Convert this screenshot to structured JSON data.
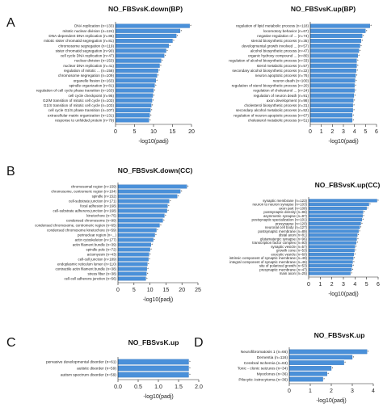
{
  "panels": [
    "A",
    "B",
    "C",
    "D"
  ],
  "colors": {
    "bar": "#4a90d9",
    "bar_stroke": "#2f6db0",
    "axis": "#222222"
  },
  "chart_data": [
    {
      "id": "A-left",
      "type": "bar",
      "orientation": "horizontal",
      "title": "NO_FBSvsK.down(BP)",
      "xlabel": "-log10(padj)",
      "xlim": [
        0,
        20
      ],
      "xticks": [
        0,
        5,
        10,
        15,
        20
      ],
      "categories": [
        "DNA replication (n=133)",
        "mitotic nuclear division (n=124)",
        "DNA-dependent DNA replication (n=85)",
        "mitotic sister chromatid segregation (n=81)",
        "chromosome segregation (n=119)",
        "sister chromatid segregation (n=90)",
        "cell cycle DNA replication (n=47)",
        "nuclear division (n=153)",
        "nuclear DNA replication (n=41)",
        "regulation of mitotic ... (n=158)",
        "chromosome segregation (n=109)",
        "organelle fission (n=163)",
        "spindle organization (n=81)",
        "regulation of cell cycle phase transition (n=163)",
        "cell cycle checkpoint (n=95)",
        "G2/M transition of mitotic cell cycle (n=103)",
        "G1/S transition of mitotic cell cycle (n=103)",
        "cell cycle G1/S phase transition (n=107)",
        "extracellular matrix organization (n=131)",
        "response to unfolded protein (n=79)"
      ],
      "values": [
        19.5,
        17.0,
        16.0,
        15.0,
        14.0,
        13.3,
        12.8,
        12.0,
        11.6,
        11.2,
        10.9,
        10.6,
        10.3,
        10.0,
        9.8,
        9.6,
        9.4,
        9.2,
        9.0,
        8.8
      ]
    },
    {
      "id": "A-right",
      "type": "bar",
      "orientation": "horizontal",
      "title": "NO_FBSvsK.up(BP)",
      "xlabel": "-log10(padj)",
      "xlim": [
        0,
        6
      ],
      "xticks": [
        0,
        1,
        2,
        3,
        4,
        5,
        6
      ],
      "categories": [
        "regulation of lipid metabolic process (n=118)",
        "locomotory behavior (n=67)",
        "negative regulation of ... (n=74)",
        "steroid biosynthetic process (n=35)",
        "developmental growth involved ... (n=57)",
        "alcohol biosynthetic process (n=47)",
        "organic hydroxy compound ... (n=80)",
        "regulation of alcohol biosynthetic process (n=33)",
        "sterol metabolic process (n=57)",
        "secondary alcohol biosynthetic process (n=22)",
        "neuron apoptotic process (n=76)",
        "neuron death (n=100)",
        "regulation of sterol biosynthetic process (n=20)",
        "regulation of cholesterol ... (n=24)",
        "regulation of neuron death (n=91)",
        "axon development (n=98)",
        "cholesterol biosynthetic process (n=31)",
        "secondary alcohol metabolic process (n=52)",
        "regulation of neuron apoptotic process (n=67)",
        "cholesterol metabolic process (n=51)"
      ],
      "values": [
        5.4,
        5.0,
        4.7,
        4.6,
        4.5,
        4.4,
        4.3,
        4.2,
        4.2,
        4.15,
        4.1,
        4.05,
        4.0,
        4.0,
        3.95,
        3.9,
        3.85,
        3.85,
        3.8,
        3.8
      ]
    },
    {
      "id": "B-left",
      "type": "bar",
      "orientation": "horizontal",
      "title": "NO_FBSvsK.down(CC)",
      "xlabel": "-log10(padj)",
      "xlim": [
        0,
        25
      ],
      "xticks": [
        0,
        5,
        10,
        15,
        20,
        25
      ],
      "categories": [
        "chromosomal region (n=159)",
        "chromosome, centromeric region (n=104)",
        "spindle (n=152)",
        "cell-substrate junction (n=171)",
        "focal adhesion (n=168)",
        "cell-substrate adherens junction (n=168)",
        "kinetochore (n=75)",
        "condensed chromosome (n=99)",
        "condensed chromosome, centromeric region (n=65)",
        "condensed chromosome kinetochore (n=59)",
        "perinuclear region (n=...)",
        "actin cytoskeleton (n=177)",
        "actin filament bundle (n=39)",
        "spindle pole (n=72)",
        "actomyosin (n=43)",
        "cell-cell junction (n=189)",
        "endoplasmic reticulum lumen (n=110)",
        "contractile actin filament bundle (n=38)",
        "stress fiber (n=38)",
        "cell-cell adherens junction (n=56)"
      ],
      "values": [
        21.5,
        19.5,
        18.5,
        16.0,
        15.5,
        15.3,
        14.5,
        14.0,
        13.0,
        12.0,
        11.5,
        11.0,
        10.3,
        10.0,
        9.7,
        9.5,
        9.2,
        9.0,
        8.9,
        8.7
      ]
    },
    {
      "id": "B-right",
      "type": "bar",
      "orientation": "horizontal",
      "title": "NO_FBSvsK.up(CC)",
      "xlabel": "-log10(padj)",
      "xlim": [
        0,
        6
      ],
      "xticks": [
        0,
        1,
        2,
        3,
        4,
        5,
        6
      ],
      "categories": [
        "synaptic membrane (n=123)",
        "neuron to neuron synapse (n=103)",
        "axon part (n=108)",
        "postsynaptic density (n=96)",
        "asymmetric synapse (n=97)",
        "postsynaptic specialization (n=101)",
        "presynapse (n=120)",
        "neuronal cell body (n=127)",
        "postsynaptic membrane (n=89)",
        "distal axon (n=81)",
        "glutamatergic synapse (n=96)",
        "transcription factor complex (n=93)",
        "synaptic vesicle (n=57)",
        "growth cone (n=53)",
        "exocytic vesicle (n=60)",
        "intrinsic component of synaptic membrane (n=49)",
        "integral component of synaptic membrane (n=46)",
        "site of polarized growth (n=53)",
        "presynaptic membrane (n=47)",
        "main axon (n=25)"
      ],
      "values": [
        5.9,
        5.2,
        5.0,
        4.7,
        4.65,
        4.6,
        4.5,
        4.4,
        4.3,
        4.2,
        4.15,
        4.1,
        4.0,
        3.95,
        3.9,
        3.85,
        3.8,
        3.75,
        3.7,
        3.6
      ]
    },
    {
      "id": "C",
      "type": "bar",
      "orientation": "horizontal",
      "title": "NO_FBSvsK.up",
      "xlabel": "-log10(padj)",
      "xlim": [
        0,
        2.0
      ],
      "xticks": [
        0.0,
        0.5,
        1.0,
        1.5,
        2.0
      ],
      "tick_labels": [
        "0.0",
        "0.5",
        "1.0",
        "1.5",
        "2.0"
      ],
      "categories": [
        "pervasive developmental disorder (n=61)",
        "autistic disorder (n=59)",
        "autism spectrum disorder (n=59)"
      ],
      "values": [
        1.75,
        1.75,
        1.75
      ]
    },
    {
      "id": "D",
      "type": "bar",
      "orientation": "horizontal",
      "title": "NO_FBSvsK.up",
      "xlabel": "-log10(padj)",
      "xlim": [
        0,
        4
      ],
      "xticks": [
        0,
        1,
        2,
        3,
        4
      ],
      "categories": [
        "Neurofibromatosis 1 (n=66)",
        "Dementia (n=116)",
        "Cerebral Ischemia (n=63)",
        "Tonic - clonic seizures (n=34)",
        "Myoclonus (n=36)",
        "Pilocytic Astrocytoma (n=36)"
      ],
      "values": [
        3.7,
        3.0,
        2.6,
        2.0,
        1.8,
        1.6
      ]
    }
  ]
}
